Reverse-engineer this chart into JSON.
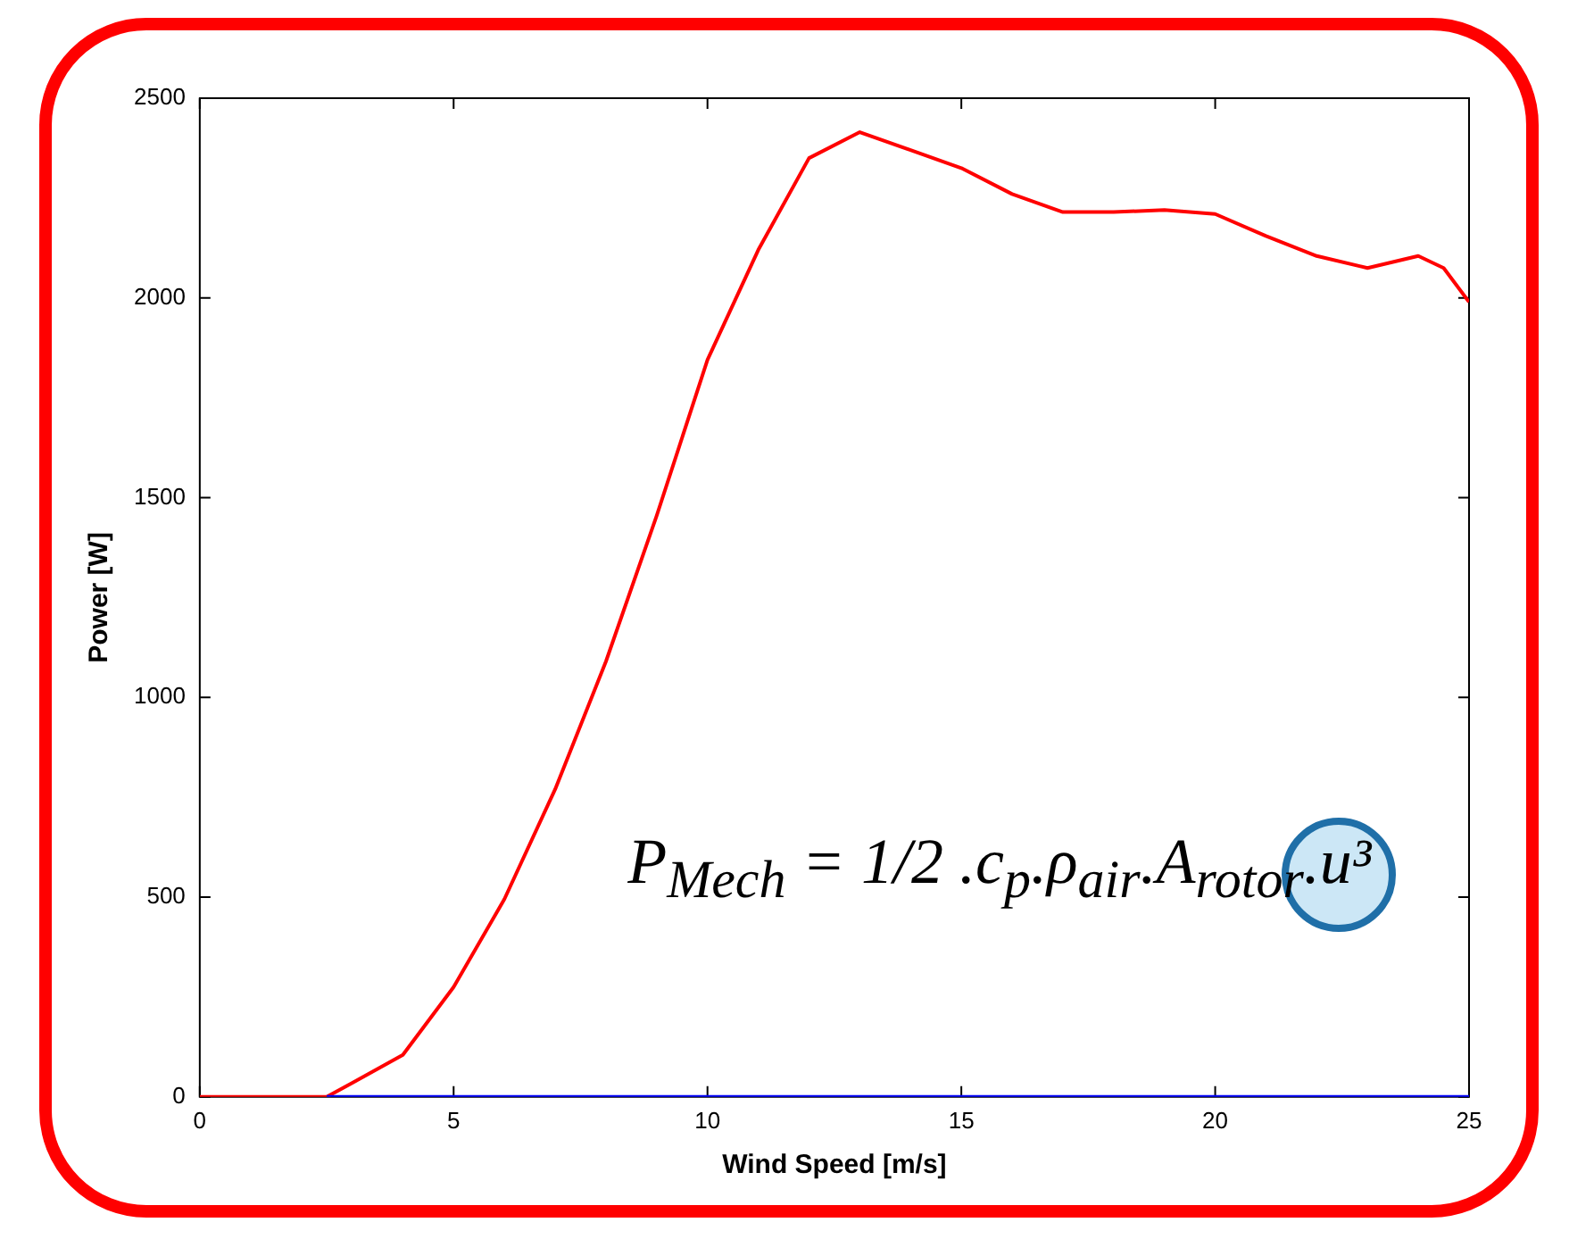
{
  "chart_data": {
    "type": "line",
    "xlabel": "Wind Speed [m/s]",
    "ylabel": "Power [W]",
    "xlim": [
      0,
      25
    ],
    "xticks": [
      0,
      5,
      10,
      15,
      20,
      25
    ],
    "ylim": [
      0,
      2500
    ],
    "yticks": [
      0,
      500,
      1000,
      1500,
      2000,
      2500
    ],
    "grid": false,
    "legend": false,
    "marker": "none",
    "line_style": "solid",
    "series": [
      {
        "color": "#0000ff",
        "x": [
          2.5,
          25
        ],
        "values": [
          0,
          0
        ]
      },
      {
        "color": "#ff0000",
        "x": [
          0,
          2.5,
          3,
          4,
          5,
          6,
          7,
          8,
          9,
          10,
          11,
          12,
          13,
          14,
          15,
          16,
          17,
          18,
          19,
          20,
          21,
          22,
          23,
          24,
          24.5,
          25
        ],
        "values": [
          0,
          0,
          35,
          105,
          275,
          495,
          770,
          1090,
          1455,
          1845,
          2120,
          2350,
          2415,
          2370,
          2325,
          2260,
          2215,
          2215,
          2220,
          2210,
          2155,
          2105,
          2075,
          2105,
          2075,
          1990
        ]
      }
    ],
    "annotations": [
      "P$_{Mech}$ = 1/2 .c$_{p}$.ρ$_{air}$.A$_{rotor}$.u³"
    ]
  }
}
